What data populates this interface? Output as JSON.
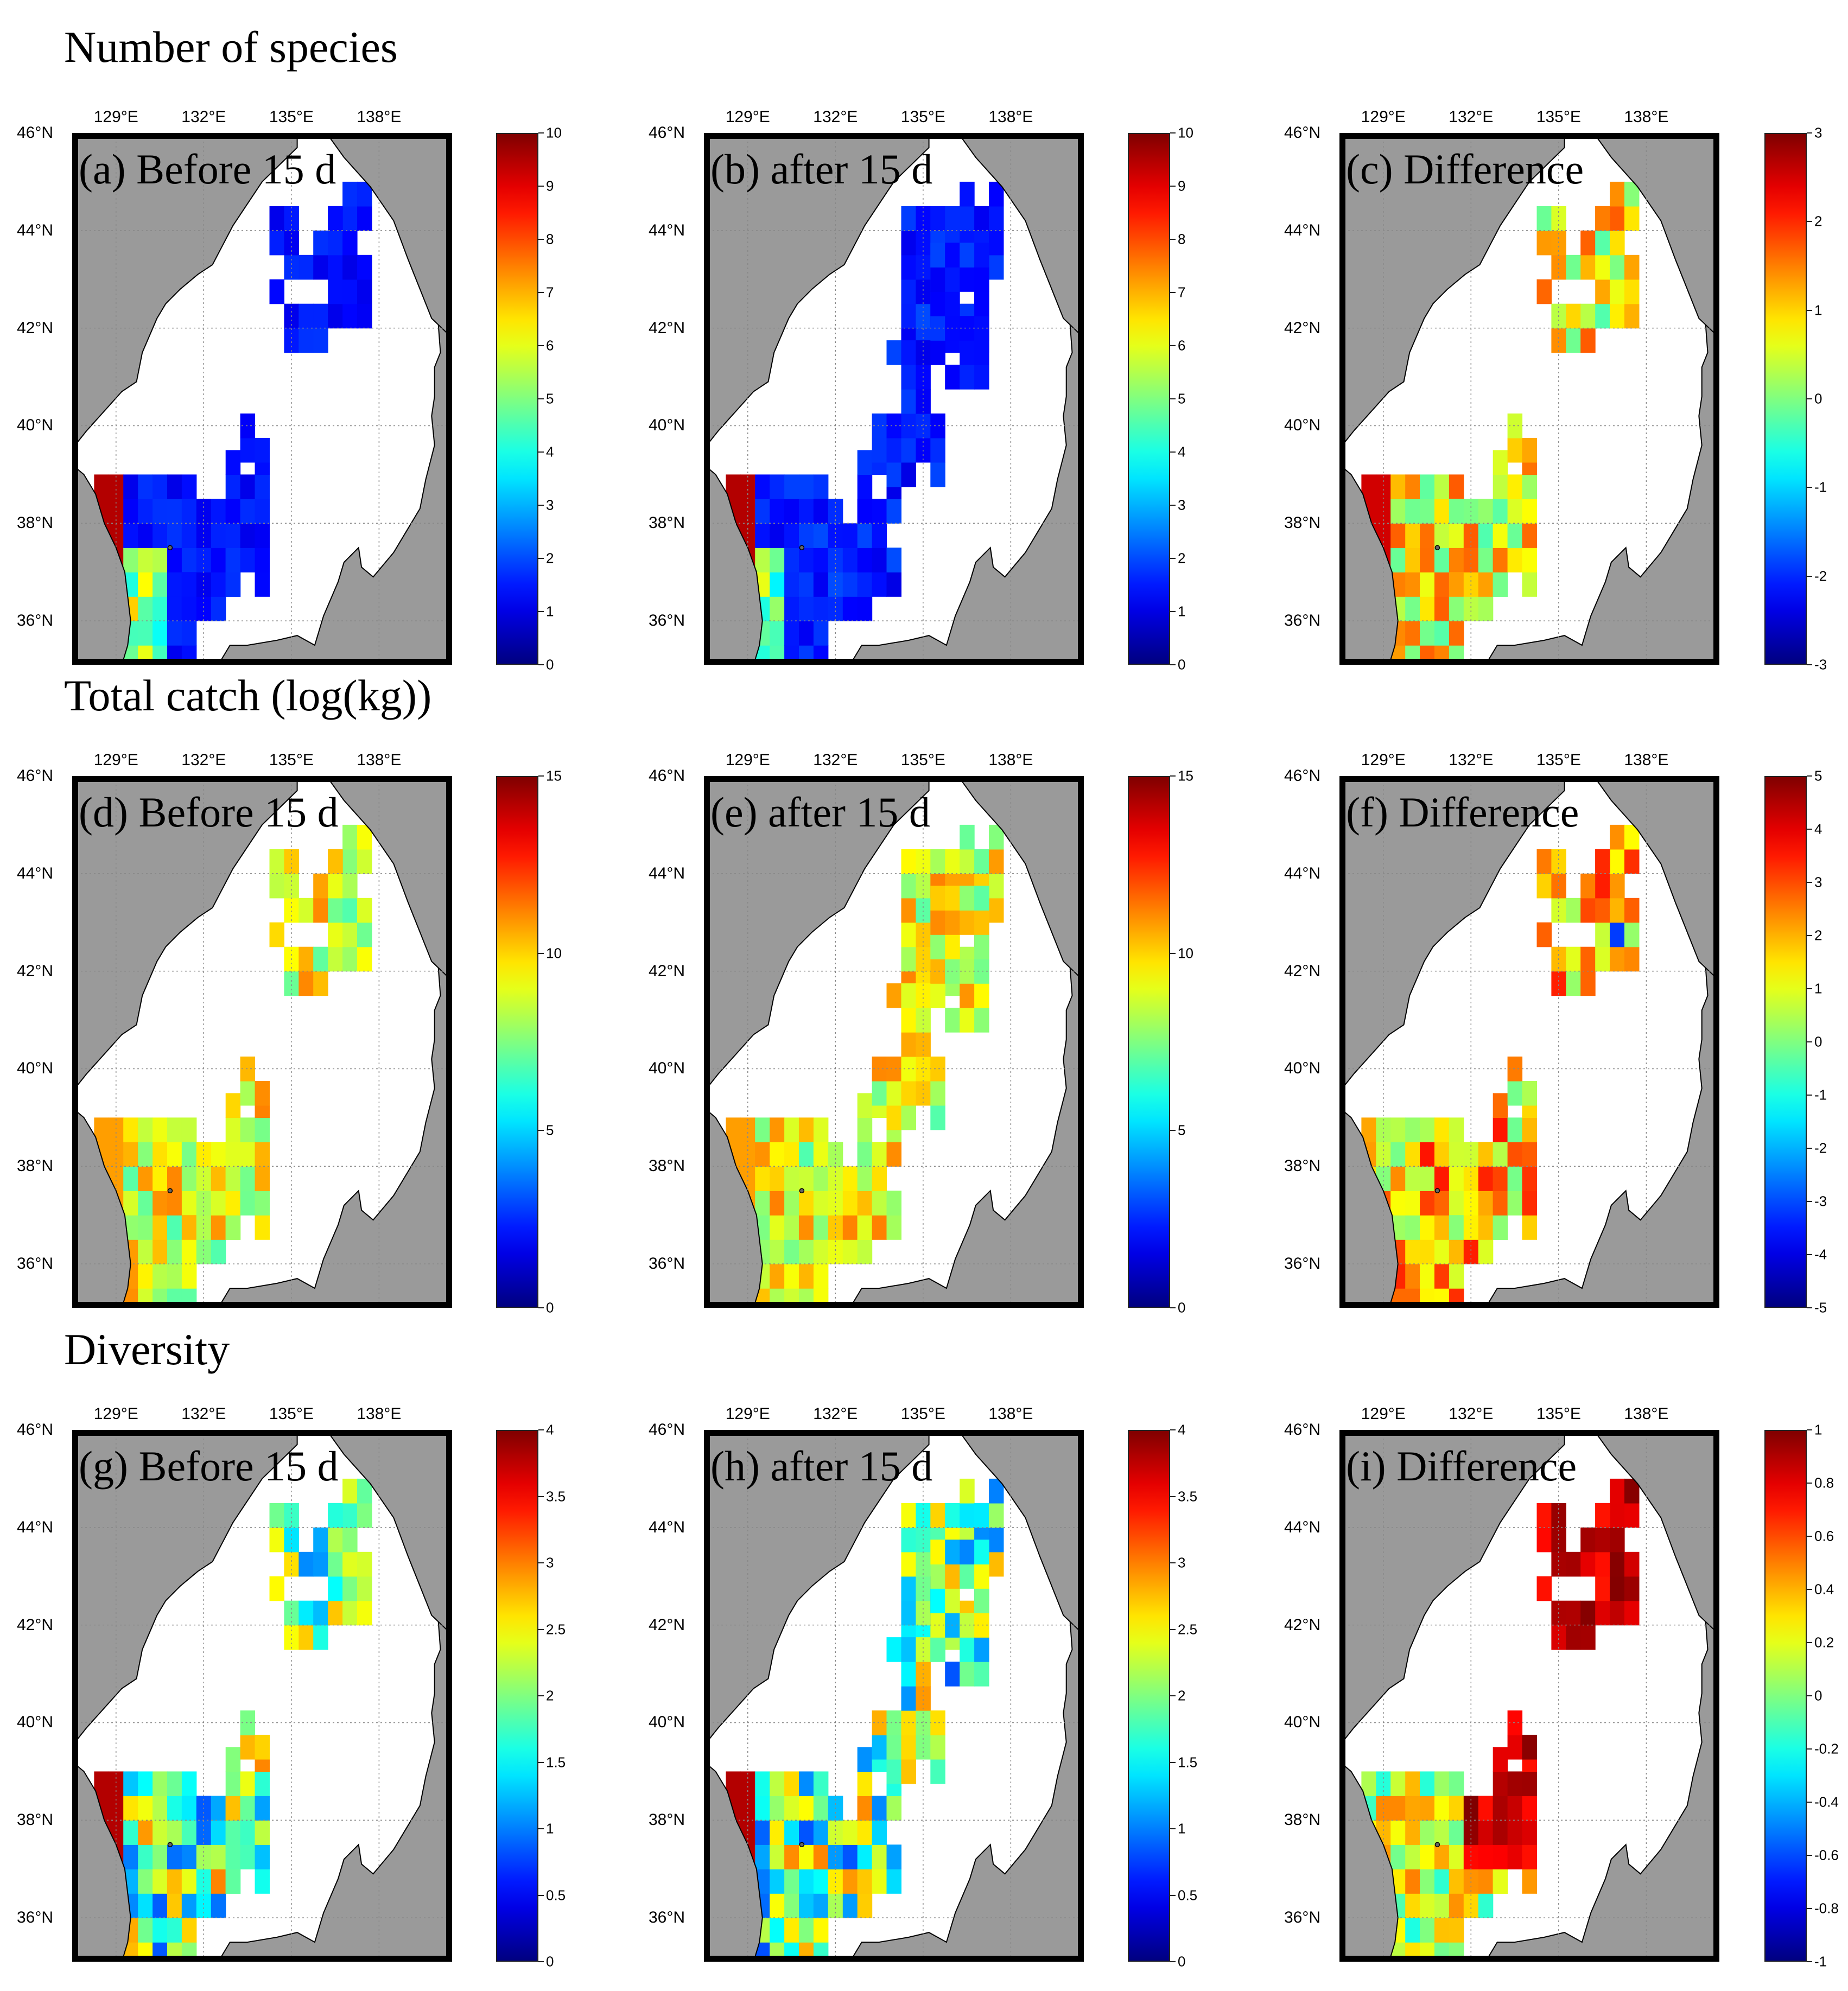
{
  "row_titles": [
    "Number of species",
    "Total catch (log(kg))",
    "Diversity"
  ],
  "panel_labels": [
    "(a) Before 15 d",
    "(b) after 15 d",
    "(c) Difference",
    "(d) Before 15 d",
    "(e) after 15 d",
    "(f) Difference",
    "(g) Before 15 d",
    "(h) after 15 d",
    "(i) Difference"
  ],
  "x_ticks": [
    {
      "lon": 129,
      "label": "129°E"
    },
    {
      "lon": 132,
      "label": "132°E"
    },
    {
      "lon": 135,
      "label": "135°E"
    },
    {
      "lon": 138,
      "label": "138°E"
    }
  ],
  "y_ticks": [
    {
      "lat": 46,
      "label": "46°N"
    },
    {
      "lat": 44,
      "label": "44°N"
    },
    {
      "lat": 42,
      "label": "42°N"
    },
    {
      "lat": 40,
      "label": "40°N"
    },
    {
      "lat": 38,
      "label": "38°N"
    },
    {
      "lat": 36,
      "label": "36°N"
    }
  ],
  "colorbars": [
    [
      "10",
      "9",
      "8",
      "7",
      "6",
      "5",
      "4",
      "3",
      "2",
      "1",
      "0"
    ],
    [
      "3",
      "2",
      "1",
      "0",
      "-1",
      "-2",
      "-3"
    ],
    [
      "15",
      "10",
      "5",
      "0"
    ],
    [
      "5",
      "4",
      "3",
      "2",
      "1",
      "0",
      "-1",
      "-2",
      "-3",
      "-4",
      "-5"
    ],
    [
      "4",
      "3.5",
      "3",
      "2.5",
      "2",
      "1.5",
      "1",
      "0.5",
      "0"
    ],
    [
      "1",
      "0.8",
      "0.6",
      "0.4",
      "0.2",
      "0",
      "-0.2",
      "-0.4",
      "-0.6",
      "-0.8",
      "-1"
    ]
  ],
  "colors": {
    "land": "#9a9a9a",
    "sea": "#ffffff",
    "colormap": "jet"
  },
  "chart_data": [
    {
      "type": "heatmap",
      "panel": "a",
      "title": "(a) Before 15 d",
      "colorbar_range": [
        0,
        10
      ],
      "x_range": [
        127.5,
        140.5
      ],
      "y_range": [
        35.1,
        46
      ],
      "note": "Blue (1–2 species) over the offshore grid; dark red (~10) along the Korean east coast; cyan to yellow (3–7) near Ulleung Island."
    },
    {
      "type": "heatmap",
      "panel": "b",
      "title": "(b) after 15 d",
      "colorbar_range": [
        0,
        10
      ]
    },
    {
      "type": "heatmap",
      "panel": "c",
      "title": "(c) Difference",
      "colorbar_range": [
        -3,
        3
      ]
    },
    {
      "type": "heatmap",
      "panel": "d",
      "title": "(d) Before 15 d",
      "colorbar_range": [
        0,
        15
      ]
    },
    {
      "type": "heatmap",
      "panel": "e",
      "title": "(e) after 15 d",
      "colorbar_range": [
        0,
        15
      ]
    },
    {
      "type": "heatmap",
      "panel": "f",
      "title": "(f) Difference",
      "colorbar_range": [
        -5,
        5
      ]
    },
    {
      "type": "heatmap",
      "panel": "g",
      "title": "(g) Before 15 d",
      "colorbar_range": [
        0,
        4
      ]
    },
    {
      "type": "heatmap",
      "panel": "h",
      "title": "(h) after 15 d",
      "colorbar_range": [
        0,
        4
      ]
    },
    {
      "type": "heatmap",
      "panel": "i",
      "title": "(i) Difference",
      "colorbar_range": [
        -1,
        1
      ]
    }
  ]
}
